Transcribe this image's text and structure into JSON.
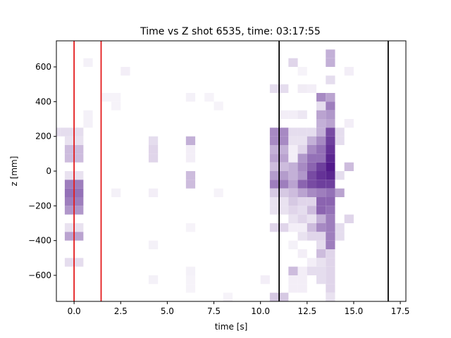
{
  "chart_data": {
    "type": "heatmap",
    "title": "Time vs Z shot 6535, time: 03:17:55",
    "xlabel": "time [s]",
    "ylabel": "z [mm]",
    "xlim": [
      -0.95,
      17.8
    ],
    "ylim": [
      -750,
      750
    ],
    "x_ticks": [
      0,
      2.5,
      5,
      7.5,
      10,
      12.5,
      15,
      17.5
    ],
    "x_tick_labels": [
      "0.0",
      "2.5",
      "5.0",
      "7.5",
      "10.0",
      "12.5",
      "15.0",
      "17.5"
    ],
    "y_ticks": [
      -600,
      -400,
      -200,
      0,
      200,
      400,
      600
    ],
    "y_tick_labels": [
      "−600",
      "−400",
      "−200",
      "0",
      "200",
      "400",
      "600"
    ],
    "bin_width_s": 0.5,
    "bin_height_mm": 50,
    "colormap": "Purples",
    "grid": false,
    "red_lines_x": [
      0.0,
      1.45
    ],
    "black_lines_x": [
      11.0,
      16.85
    ],
    "line_colors": {
      "red": "#e31a1c",
      "black": "#000000"
    },
    "cells": [
      [
        -1.0,
        225,
        0.12
      ],
      [
        -0.5,
        225,
        0.12
      ],
      [
        0.0,
        225,
        0.12
      ],
      [
        0.25,
        225,
        0.12
      ],
      [
        -0.25,
        175,
        0.1
      ],
      [
        0.25,
        175,
        0.1
      ],
      [
        -0.25,
        125,
        0.25
      ],
      [
        0.25,
        125,
        0.25
      ],
      [
        -0.25,
        75,
        0.25
      ],
      [
        0.25,
        75,
        0.25
      ],
      [
        -0.25,
        -25,
        0.1
      ],
      [
        0.25,
        -25,
        0.1
      ],
      [
        -0.25,
        -75,
        0.5
      ],
      [
        0.25,
        -75,
        0.5
      ],
      [
        -0.25,
        -125,
        0.55
      ],
      [
        0.25,
        -125,
        0.55
      ],
      [
        -0.25,
        -175,
        0.5
      ],
      [
        0.25,
        -175,
        0.5
      ],
      [
        -0.25,
        -225,
        0.4
      ],
      [
        0.25,
        -225,
        0.4
      ],
      [
        -0.25,
        -325,
        0.1
      ],
      [
        0.25,
        -325,
        0.1
      ],
      [
        -0.25,
        -375,
        0.35
      ],
      [
        0.25,
        -375,
        0.35
      ],
      [
        -0.25,
        -525,
        0.12
      ],
      [
        0.25,
        -525,
        0.12
      ],
      [
        0.75,
        625,
        0.04
      ],
      [
        0.75,
        325,
        0.04
      ],
      [
        0.75,
        275,
        0.04
      ],
      [
        1.75,
        425,
        0.03
      ],
      [
        2.25,
        425,
        0.03
      ],
      [
        2.25,
        375,
        0.03
      ],
      [
        2.25,
        -125,
        0.04
      ],
      [
        2.75,
        575,
        0.05
      ],
      [
        4.25,
        175,
        0.12
      ],
      [
        4.25,
        125,
        0.15
      ],
      [
        4.25,
        75,
        0.15
      ],
      [
        4.25,
        -125,
        0.05
      ],
      [
        4.25,
        -425,
        0.04
      ],
      [
        4.25,
        -625,
        0.04
      ],
      [
        6.25,
        425,
        0.04
      ],
      [
        6.25,
        175,
        0.3
      ],
      [
        6.25,
        125,
        0.05
      ],
      [
        6.25,
        75,
        0.05
      ],
      [
        6.25,
        -25,
        0.25
      ],
      [
        6.25,
        -75,
        0.25
      ],
      [
        6.25,
        -325,
        0.03
      ],
      [
        6.25,
        -575,
        0.04
      ],
      [
        6.25,
        -625,
        0.03
      ],
      [
        6.25,
        -675,
        0.03
      ],
      [
        7.25,
        425,
        0.03
      ],
      [
        7.75,
        375,
        0.03
      ],
      [
        7.75,
        -125,
        0.03
      ],
      [
        8.25,
        -725,
        0.03
      ],
      [
        10.25,
        -625,
        0.05
      ],
      [
        10.75,
        475,
        0.12
      ],
      [
        11.25,
        475,
        0.12
      ],
      [
        10.75,
        225,
        0.45
      ],
      [
        11.25,
        225,
        0.45
      ],
      [
        10.75,
        175,
        0.45
      ],
      [
        11.25,
        175,
        0.45
      ],
      [
        10.75,
        125,
        0.3
      ],
      [
        11.25,
        125,
        0.3
      ],
      [
        10.75,
        75,
        0.35
      ],
      [
        11.25,
        75,
        0.35
      ],
      [
        10.75,
        25,
        0.25
      ],
      [
        11.25,
        25,
        0.25
      ],
      [
        10.75,
        -25,
        0.38
      ],
      [
        11.25,
        -25,
        0.38
      ],
      [
        10.75,
        -75,
        0.5
      ],
      [
        11.25,
        -75,
        0.5
      ],
      [
        10.75,
        -125,
        0.2
      ],
      [
        11.25,
        -125,
        0.2
      ],
      [
        10.75,
        -175,
        0.1
      ],
      [
        11.25,
        -175,
        0.1
      ],
      [
        10.75,
        -225,
        0.1
      ],
      [
        11.25,
        -225,
        0.1
      ],
      [
        10.75,
        -325,
        0.15
      ],
      [
        11.25,
        -325,
        0.15
      ],
      [
        10.75,
        -725,
        0.2
      ],
      [
        11.25,
        -725,
        0.2
      ],
      [
        11.25,
        325,
        0.05
      ],
      [
        11.75,
        625,
        0.15
      ],
      [
        11.75,
        325,
        0.05
      ],
      [
        11.75,
        225,
        0.12
      ],
      [
        11.75,
        175,
        0.1
      ],
      [
        11.75,
        125,
        0.05
      ],
      [
        11.75,
        75,
        0.05
      ],
      [
        11.75,
        25,
        0.3
      ],
      [
        11.75,
        -25,
        0.3
      ],
      [
        11.75,
        -75,
        0.35
      ],
      [
        11.75,
        -125,
        0.25
      ],
      [
        11.75,
        -175,
        0.2
      ],
      [
        11.75,
        -225,
        0.15
      ],
      [
        11.75,
        -275,
        0.1
      ],
      [
        11.75,
        -325,
        0.05
      ],
      [
        11.75,
        -425,
        0.04
      ],
      [
        11.75,
        -575,
        0.25
      ],
      [
        11.75,
        -625,
        0.05
      ],
      [
        11.75,
        -675,
        0.05
      ],
      [
        12.25,
        575,
        0.03
      ],
      [
        12.25,
        475,
        0.06
      ],
      [
        12.25,
        325,
        0.08
      ],
      [
        12.25,
        225,
        0.12
      ],
      [
        12.25,
        175,
        0.1
      ],
      [
        12.25,
        125,
        0.15
      ],
      [
        12.25,
        75,
        0.4
      ],
      [
        12.25,
        25,
        0.45
      ],
      [
        12.25,
        -25,
        0.4
      ],
      [
        12.25,
        -75,
        0.6
      ],
      [
        12.25,
        -125,
        0.35
      ],
      [
        12.25,
        -175,
        0.15
      ],
      [
        12.25,
        -225,
        0.12
      ],
      [
        12.25,
        -275,
        0.15
      ],
      [
        12.25,
        -325,
        0.05
      ],
      [
        12.25,
        -375,
        0.1
      ],
      [
        12.25,
        -475,
        0.05
      ],
      [
        12.25,
        -575,
        0.05
      ],
      [
        12.25,
        -625,
        0.05
      ],
      [
        12.25,
        -675,
        0.05
      ],
      [
        12.75,
        475,
        0.05
      ],
      [
        12.75,
        225,
        0.12
      ],
      [
        12.75,
        175,
        0.3
      ],
      [
        12.75,
        125,
        0.45
      ],
      [
        12.75,
        75,
        0.55
      ],
      [
        12.75,
        25,
        0.6
      ],
      [
        12.75,
        -25,
        0.7
      ],
      [
        12.75,
        -75,
        0.7
      ],
      [
        12.75,
        -125,
        0.45
      ],
      [
        12.75,
        -175,
        0.15
      ],
      [
        12.75,
        -225,
        0.25
      ],
      [
        12.75,
        -275,
        0.1
      ],
      [
        12.75,
        -325,
        0.25
      ],
      [
        12.75,
        -375,
        0.15
      ],
      [
        12.75,
        -525,
        0.05
      ],
      [
        12.75,
        -575,
        0.12
      ],
      [
        13.25,
        425,
        0.45
      ],
      [
        13.25,
        375,
        0.12
      ],
      [
        13.25,
        325,
        0.35
      ],
      [
        13.25,
        275,
        0.3
      ],
      [
        13.25,
        225,
        0.3
      ],
      [
        13.25,
        175,
        0.45
      ],
      [
        13.25,
        125,
        0.55
      ],
      [
        13.25,
        75,
        0.55
      ],
      [
        13.25,
        25,
        0.75
      ],
      [
        13.25,
        -25,
        0.8
      ],
      [
        13.25,
        -75,
        0.75
      ],
      [
        13.25,
        -125,
        0.5
      ],
      [
        13.25,
        -175,
        0.6
      ],
      [
        13.25,
        -225,
        0.6
      ],
      [
        13.25,
        -275,
        0.3
      ],
      [
        13.25,
        -325,
        0.45
      ],
      [
        13.25,
        -375,
        0.15
      ],
      [
        13.25,
        -425,
        0.12
      ],
      [
        13.25,
        -475,
        0.25
      ],
      [
        13.25,
        -525,
        0.1
      ],
      [
        13.25,
        -575,
        0.12
      ],
      [
        13.25,
        -625,
        0.12
      ],
      [
        13.75,
        675,
        0.3
      ],
      [
        13.75,
        625,
        0.3
      ],
      [
        13.75,
        525,
        0.12
      ],
      [
        13.75,
        425,
        0.35
      ],
      [
        13.75,
        375,
        0.5
      ],
      [
        13.75,
        325,
        0.4
      ],
      [
        13.75,
        275,
        0.35
      ],
      [
        13.75,
        225,
        0.7
      ],
      [
        13.75,
        175,
        0.75
      ],
      [
        13.75,
        125,
        0.8
      ],
      [
        13.75,
        75,
        0.85
      ],
      [
        13.75,
        25,
        0.9
      ],
      [
        13.75,
        -25,
        0.85
      ],
      [
        13.75,
        -75,
        0.75
      ],
      [
        13.75,
        -125,
        0.55
      ],
      [
        13.75,
        -175,
        0.6
      ],
      [
        13.75,
        -225,
        0.55
      ],
      [
        13.75,
        -275,
        0.5
      ],
      [
        13.75,
        -325,
        0.5
      ],
      [
        13.75,
        -375,
        0.5
      ],
      [
        13.75,
        -425,
        0.5
      ],
      [
        13.75,
        -475,
        0.15
      ],
      [
        13.75,
        -525,
        0.15
      ],
      [
        13.75,
        -575,
        0.15
      ],
      [
        13.75,
        -625,
        0.15
      ],
      [
        13.75,
        -675,
        0.15
      ],
      [
        13.75,
        -725,
        0.1
      ],
      [
        14.25,
        225,
        0.12
      ],
      [
        14.25,
        175,
        0.12
      ],
      [
        14.25,
        -25,
        0.12
      ],
      [
        14.25,
        -125,
        0.35
      ],
      [
        14.25,
        -325,
        0.12
      ],
      [
        14.25,
        -375,
        0.12
      ],
      [
        14.75,
        275,
        0.05
      ],
      [
        14.75,
        25,
        0.25
      ],
      [
        14.75,
        -275,
        0.15
      ],
      [
        14.75,
        575,
        0.05
      ]
    ]
  }
}
